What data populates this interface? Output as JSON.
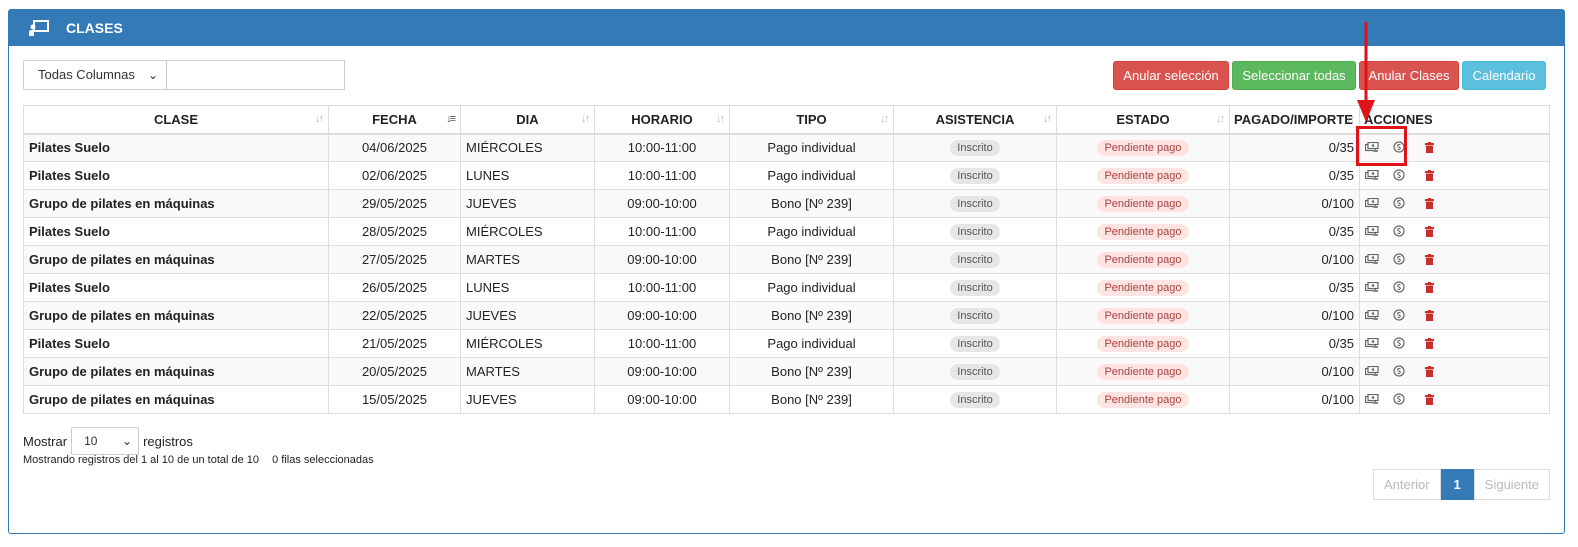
{
  "panel": {
    "title": "CLASES",
    "icon": "chalkboard-teacher-icon"
  },
  "toolbar": {
    "column_filter": "Todas Columnas",
    "search_value": "",
    "btn_deselect": "Anular selección",
    "btn_select_all": "Seleccionar todas",
    "btn_cancel_classes": "Anular Clases",
    "btn_calendar": "Calendario"
  },
  "table": {
    "headers": {
      "clase": "CLASE",
      "fecha": "FECHA",
      "dia": "DIA",
      "horario": "HORARIO",
      "tipo": "TIPO",
      "asistencia": "ASISTENCIA",
      "estado": "ESTADO",
      "pagado": "PAGADO/IMPORTE",
      "acciones": "ACCIONES"
    },
    "rows": [
      {
        "clase": "Pilates Suelo",
        "fecha": "04/06/2025",
        "dia": "MIÉRCOLES",
        "horario": "10:00-11:00",
        "tipo": "Pago individual",
        "asistencia": "Inscrito",
        "estado": "Pendiente pago",
        "pagado": "0/35"
      },
      {
        "clase": "Pilates Suelo",
        "fecha": "02/06/2025",
        "dia": "LUNES",
        "horario": "10:00-11:00",
        "tipo": "Pago individual",
        "asistencia": "Inscrito",
        "estado": "Pendiente pago",
        "pagado": "0/35"
      },
      {
        "clase": "Grupo de pilates en máquinas",
        "fecha": "29/05/2025",
        "dia": "JUEVES",
        "horario": "09:00-10:00",
        "tipo": "Bono [Nº 239]",
        "asistencia": "Inscrito",
        "estado": "Pendiente pago",
        "pagado": "0/100"
      },
      {
        "clase": "Pilates Suelo",
        "fecha": "28/05/2025",
        "dia": "MIÉRCOLES",
        "horario": "10:00-11:00",
        "tipo": "Pago individual",
        "asistencia": "Inscrito",
        "estado": "Pendiente pago",
        "pagado": "0/35"
      },
      {
        "clase": "Grupo de pilates en máquinas",
        "fecha": "27/05/2025",
        "dia": "MARTES",
        "horario": "09:00-10:00",
        "tipo": "Bono [Nº 239]",
        "asistencia": "Inscrito",
        "estado": "Pendiente pago",
        "pagado": "0/100"
      },
      {
        "clase": "Pilates Suelo",
        "fecha": "26/05/2025",
        "dia": "LUNES",
        "horario": "10:00-11:00",
        "tipo": "Pago individual",
        "asistencia": "Inscrito",
        "estado": "Pendiente pago",
        "pagado": "0/35"
      },
      {
        "clase": "Grupo de pilates en máquinas",
        "fecha": "22/05/2025",
        "dia": "JUEVES",
        "horario": "09:00-10:00",
        "tipo": "Bono [Nº 239]",
        "asistencia": "Inscrito",
        "estado": "Pendiente pago",
        "pagado": "0/100"
      },
      {
        "clase": "Pilates Suelo",
        "fecha": "21/05/2025",
        "dia": "MIÉRCOLES",
        "horario": "10:00-11:00",
        "tipo": "Pago individual",
        "asistencia": "Inscrito",
        "estado": "Pendiente pago",
        "pagado": "0/35"
      },
      {
        "clase": "Grupo de pilates en máquinas",
        "fecha": "20/05/2025",
        "dia": "MARTES",
        "horario": "09:00-10:00",
        "tipo": "Bono [Nº 239]",
        "asistencia": "Inscrito",
        "estado": "Pendiente pago",
        "pagado": "0/100"
      },
      {
        "clase": "Grupo de pilates en máquinas",
        "fecha": "15/05/2025",
        "dia": "JUEVES",
        "horario": "09:00-10:00",
        "tipo": "Bono [Nº 239]",
        "asistencia": "Inscrito",
        "estado": "Pendiente pago",
        "pagado": "0/100"
      }
    ],
    "action_icons": [
      "money-icon",
      "coin-icon",
      "trash-icon"
    ]
  },
  "footer": {
    "show_label": "Mostrar",
    "page_length": "10",
    "records_label": "registros",
    "info": "Mostrando registros del 1 al 10 de un total de 10",
    "selected_info": "0 filas seleccionadas",
    "prev": "Anterior",
    "page": "1",
    "next": "Siguiente"
  },
  "colors": {
    "primary": "#337ab7",
    "danger": "#d9534f",
    "success": "#5cb85c",
    "info": "#5bc0de",
    "annotation": "#e0131a"
  }
}
